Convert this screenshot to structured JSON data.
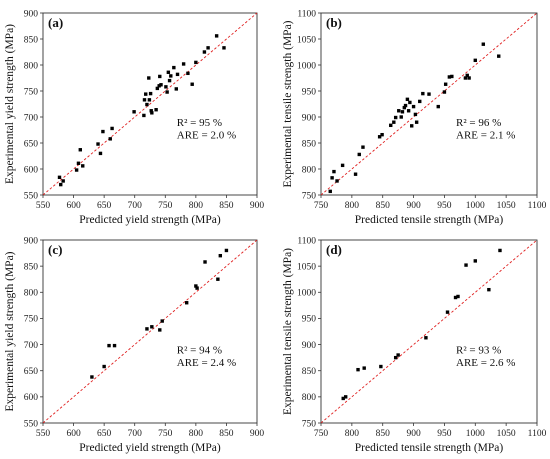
{
  "chart_data": [
    {
      "type": "scatter",
      "panel_label": "(a)",
      "xlabel": "Predicted yield strength (MPa)",
      "ylabel": "Experimental yield strength (MPa)",
      "xlim": [
        550,
        900
      ],
      "ylim": [
        550,
        900
      ],
      "xticks": [
        550,
        600,
        650,
        700,
        750,
        800,
        850,
        900
      ],
      "yticks": [
        550,
        600,
        650,
        700,
        750,
        800,
        850,
        900
      ],
      "annotation": [
        "R² = 95 %",
        "ARE = 2.0 %"
      ],
      "reference_line": "y = x",
      "marker_color": "#000000",
      "line_color": "#e02020",
      "points": [
        [
          577,
          584
        ],
        [
          579,
          570
        ],
        [
          583,
          577
        ],
        [
          605,
          598
        ],
        [
          608,
          611
        ],
        [
          611,
          637
        ],
        [
          615,
          606
        ],
        [
          640,
          648
        ],
        [
          644,
          630
        ],
        [
          648,
          672
        ],
        [
          660,
          658
        ],
        [
          663,
          678
        ],
        [
          699,
          710
        ],
        [
          715,
          703
        ],
        [
          716,
          733
        ],
        [
          718,
          744
        ],
        [
          720,
          724
        ],
        [
          723,
          775
        ],
        [
          724,
          733
        ],
        [
          726,
          745
        ],
        [
          727,
          712
        ],
        [
          728,
          708
        ],
        [
          735,
          714
        ],
        [
          737,
          755
        ],
        [
          740,
          760
        ],
        [
          741,
          778
        ],
        [
          743,
          762
        ],
        [
          751,
          758
        ],
        [
          753,
          748
        ],
        [
          755,
          786
        ],
        [
          757,
          770
        ],
        [
          759,
          779
        ],
        [
          764,
          795
        ],
        [
          768,
          754
        ],
        [
          770,
          782
        ],
        [
          780,
          802
        ],
        [
          787,
          784
        ],
        [
          794,
          763
        ],
        [
          800,
          805
        ],
        [
          814,
          825
        ],
        [
          820,
          833
        ],
        [
          834,
          856
        ],
        [
          846,
          833
        ]
      ]
    },
    {
      "type": "scatter",
      "panel_label": "(b)",
      "xlabel": "Predicted tensile strength (MPa)",
      "ylabel": "Experimental tensile strength (MPa)",
      "xlim": [
        750,
        1100
      ],
      "ylim": [
        750,
        1100
      ],
      "xticks": [
        750,
        800,
        850,
        900,
        950,
        1000,
        1050,
        1100
      ],
      "yticks": [
        750,
        800,
        850,
        900,
        950,
        1000,
        1050,
        1100
      ],
      "annotation": [
        "R² = 96 %",
        "ARE = 2.1 %"
      ],
      "reference_line": "y = x",
      "marker_color": "#000000",
      "line_color": "#e02020",
      "points": [
        [
          765,
          757
        ],
        [
          768,
          783
        ],
        [
          771,
          795
        ],
        [
          776,
          777
        ],
        [
          785,
          807
        ],
        [
          806,
          790
        ],
        [
          812,
          828
        ],
        [
          818,
          842
        ],
        [
          845,
          862
        ],
        [
          849,
          866
        ],
        [
          863,
          884
        ],
        [
          868,
          890
        ],
        [
          871,
          899
        ],
        [
          876,
          912
        ],
        [
          880,
          900
        ],
        [
          882,
          910
        ],
        [
          885,
          918
        ],
        [
          887,
          922
        ],
        [
          890,
          934
        ],
        [
          892,
          912
        ],
        [
          894,
          928
        ],
        [
          897,
          883
        ],
        [
          900,
          920
        ],
        [
          903,
          905
        ],
        [
          905,
          890
        ],
        [
          910,
          930
        ],
        [
          915,
          945
        ],
        [
          925,
          944
        ],
        [
          940,
          920
        ],
        [
          950,
          948
        ],
        [
          952,
          963
        ],
        [
          958,
          977
        ],
        [
          962,
          978
        ],
        [
          984,
          975
        ],
        [
          987,
          980
        ],
        [
          990,
          975
        ],
        [
          1000,
          1009
        ],
        [
          1013,
          1040
        ],
        [
          1038,
          1017
        ]
      ]
    },
    {
      "type": "scatter",
      "panel_label": "(c)",
      "xlabel": "Predicted yield strength (MPa)",
      "ylabel": "Experimental yield strength (MPa)",
      "xlim": [
        550,
        900
      ],
      "ylim": [
        550,
        900
      ],
      "xticks": [
        550,
        600,
        650,
        700,
        750,
        800,
        850,
        900
      ],
      "yticks": [
        550,
        600,
        650,
        700,
        750,
        800,
        850,
        900
      ],
      "annotation": [
        "R² = 94 %",
        "ARE = 2.4 %"
      ],
      "reference_line": "y = x",
      "marker_color": "#000000",
      "line_color": "#e02020",
      "points": [
        [
          630,
          638
        ],
        [
          650,
          658
        ],
        [
          658,
          698
        ],
        [
          667,
          698
        ],
        [
          720,
          730
        ],
        [
          728,
          734
        ],
        [
          741,
          728
        ],
        [
          745,
          745
        ],
        [
          785,
          780
        ],
        [
          800,
          812
        ],
        [
          802,
          808
        ],
        [
          815,
          858
        ],
        [
          836,
          825
        ],
        [
          840,
          870
        ],
        [
          850,
          880
        ]
      ]
    },
    {
      "type": "scatter",
      "panel_label": "(d)",
      "xlabel": "Predicted tensile strength (MPa)",
      "ylabel": "Experimental tensile strength (MPa)",
      "xlim": [
        750,
        1100
      ],
      "ylim": [
        750,
        1100
      ],
      "xticks": [
        750,
        800,
        850,
        900,
        950,
        1000,
        1050,
        1100
      ],
      "yticks": [
        750,
        800,
        850,
        900,
        950,
        1000,
        1050,
        1100
      ],
      "annotation": [
        "R² = 93 %",
        "ARE = 2.6 %"
      ],
      "reference_line": "y = x",
      "marker_color": "#000000",
      "line_color": "#e02020",
      "points": [
        [
          786,
          797
        ],
        [
          790,
          800
        ],
        [
          810,
          852
        ],
        [
          820,
          855
        ],
        [
          847,
          858
        ],
        [
          871,
          875
        ],
        [
          875,
          880
        ],
        [
          920,
          913
        ],
        [
          955,
          962
        ],
        [
          968,
          990
        ],
        [
          972,
          992
        ],
        [
          985,
          1052
        ],
        [
          1000,
          1060
        ],
        [
          1022,
          1005
        ],
        [
          1040,
          1080
        ]
      ]
    }
  ]
}
